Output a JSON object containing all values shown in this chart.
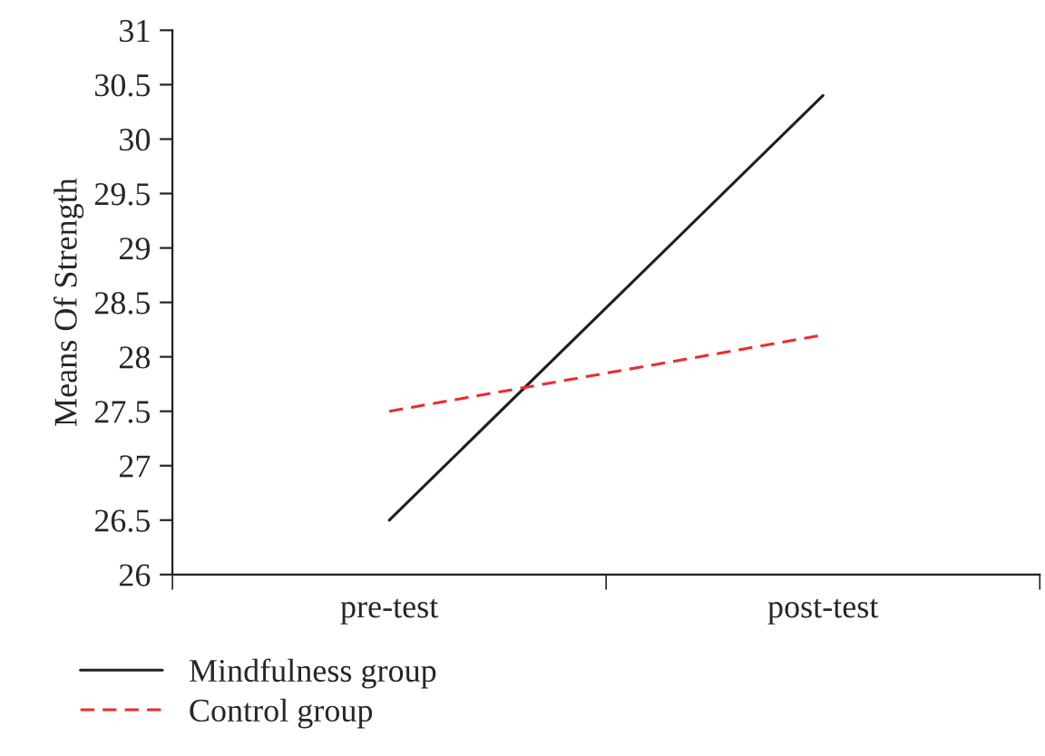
{
  "chart_data": {
    "type": "line",
    "ylabel": "Means Of Strength",
    "categories": [
      "pre-test",
      "post-test"
    ],
    "series": [
      {
        "name": "Mindfulness group",
        "color": "#231f20",
        "values": [
          26.5,
          30.4
        ],
        "line_style": "solid"
      },
      {
        "name": "Control group",
        "color": "#ee2a2f",
        "values": [
          27.5,
          28.2
        ],
        "line_style": "dashed"
      }
    ],
    "ylim": [
      26,
      31
    ],
    "yticks": [
      26,
      26.5,
      27,
      27.5,
      28,
      28.5,
      29,
      29.5,
      30,
      30.5,
      31
    ],
    "grid": false,
    "legend": "bottom left",
    "marker": "none"
  }
}
